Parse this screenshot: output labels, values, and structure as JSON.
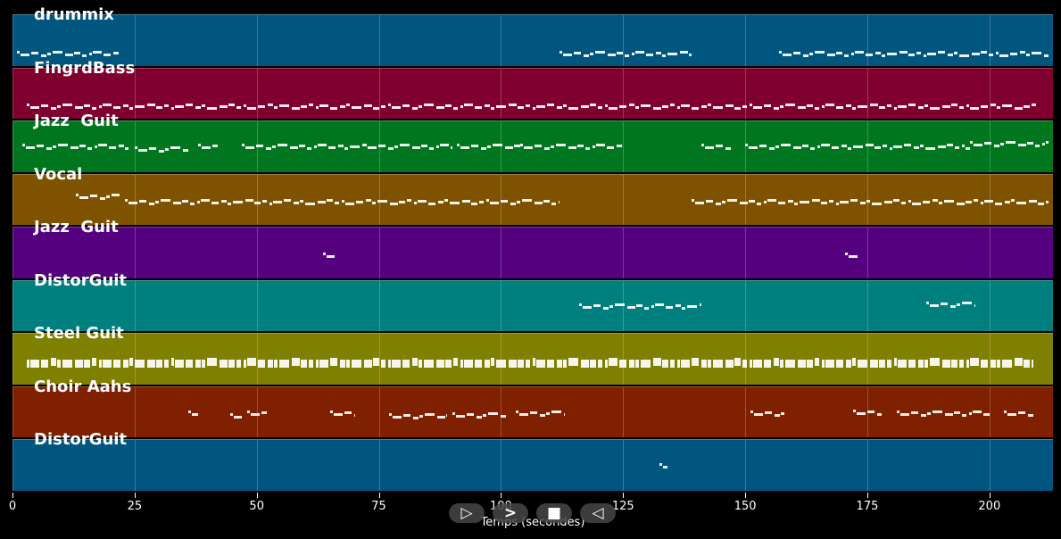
{
  "chart_data": {
    "type": "piano-roll",
    "title": "",
    "xlabel": "Temps (secondes)",
    "ylabel": "",
    "xlim": [
      0,
      213
    ],
    "x_ticks": [
      0,
      25,
      50,
      75,
      100,
      125,
      150,
      175,
      200
    ],
    "grid": true,
    "tracks": [
      {
        "name": "drummix",
        "color": "#00567f",
        "segments": [
          [
            1,
            22,
            0.7
          ],
          [
            112,
            139,
            0.7
          ],
          [
            157,
            212,
            0.7
          ]
        ]
      },
      {
        "name": "FingrdBass",
        "color": "#7f002e",
        "segments": [
          [
            3,
            210,
            0.7
          ]
        ]
      },
      {
        "name": "Jazz  Guit",
        "color": "#00771f",
        "segments": [
          [
            2,
            24,
            0.45
          ],
          [
            25,
            36,
            0.5
          ],
          [
            38,
            42,
            0.45
          ],
          [
            47,
            72,
            0.45
          ],
          [
            72,
            90,
            0.45
          ],
          [
            91,
            104,
            0.45
          ],
          [
            104,
            125,
            0.45
          ],
          [
            141,
            147,
            0.45
          ],
          [
            150,
            196,
            0.45
          ],
          [
            196,
            212,
            0.4
          ]
        ]
      },
      {
        "name": "Vocal",
        "color": "#7f5200",
        "segments": [
          [
            13,
            22,
            0.4
          ],
          [
            23,
            112,
            0.5
          ],
          [
            139,
            212,
            0.5
          ]
        ]
      },
      {
        "name": "Jazz  Guit",
        "color": "#55007f",
        "segments": [
          [
            63.5,
            66,
            0.5
          ],
          [
            170.5,
            173,
            0.5
          ]
        ]
      },
      {
        "name": "DistorGuit",
        "color": "#007f7f",
        "segments": [
          [
            116,
            141,
            0.45
          ],
          [
            187,
            197,
            0.42
          ]
        ]
      },
      {
        "name": "Steel Guit",
        "color": "#7f7f00",
        "segments": [
          [
            3,
            209,
            0.55
          ]
        ]
      },
      {
        "name": "Choir Aahs",
        "color": "#7f2000",
        "segments": [
          [
            36,
            38,
            0.47
          ],
          [
            44.5,
            47,
            0.52
          ],
          [
            48,
            52,
            0.47
          ],
          [
            65,
            70,
            0.47
          ],
          [
            77,
            89,
            0.52
          ],
          [
            90,
            101,
            0.5
          ],
          [
            103,
            113,
            0.47
          ],
          [
            151,
            158,
            0.47
          ],
          [
            172,
            178,
            0.45
          ],
          [
            181,
            200,
            0.47
          ],
          [
            203,
            209,
            0.47
          ]
        ]
      },
      {
        "name": "DistorGuit",
        "color": "#00567f",
        "segments": [
          [
            132.5,
            134,
            0.47
          ]
        ]
      }
    ]
  },
  "controls": {
    "play_label": "▷",
    "forward_label": ">",
    "stop_label": "■",
    "rewind_label": "◁"
  }
}
